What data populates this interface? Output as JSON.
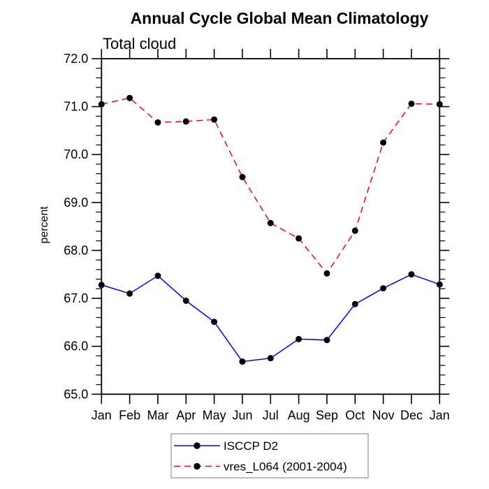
{
  "title": "Annual Cycle Global Mean Climatology",
  "subtitle": "Total cloud",
  "ylabel": "percent",
  "colors": {
    "series_isccp": "#0000ff",
    "series_vres": "#ff0000",
    "marker": "#000000",
    "axis": "#000000",
    "legend_border": "#999999",
    "background": "#ffffff"
  },
  "chart_data": {
    "type": "line",
    "title": "Annual Cycle Global Mean Climatology",
    "subtitle": "Total cloud",
    "xlabel": "",
    "ylabel": "percent",
    "categories": [
      "Jan",
      "Feb",
      "Mar",
      "Apr",
      "May",
      "Jun",
      "Jul",
      "Aug",
      "Sep",
      "Oct",
      "Nov",
      "Dec",
      "Jan"
    ],
    "series": [
      {
        "name": "ISCCP D2",
        "color": "#0000ff",
        "line_style": "solid",
        "marker": "black-dot",
        "values": [
          67.28,
          67.1,
          67.47,
          66.95,
          66.51,
          65.68,
          65.75,
          66.15,
          66.13,
          66.88,
          67.21,
          67.5,
          67.29
        ]
      },
      {
        "name": "vres_L064 (2001-2004)",
        "color": "#ff0000",
        "line_style": "dashed",
        "marker": "black-dot",
        "values": [
          71.05,
          71.18,
          70.67,
          70.69,
          70.73,
          69.53,
          68.57,
          68.25,
          67.52,
          68.41,
          70.25,
          71.06,
          71.05
        ]
      }
    ],
    "ylim": [
      65.0,
      72.0
    ],
    "y_tick_labels": [
      "65.0",
      "66.0",
      "67.0",
      "68.0",
      "69.0",
      "70.0",
      "71.0",
      "72.0"
    ],
    "y_major_step": 1.0,
    "y_minor_step": 0.2,
    "grid": false,
    "legend_position": "bottom-center"
  }
}
